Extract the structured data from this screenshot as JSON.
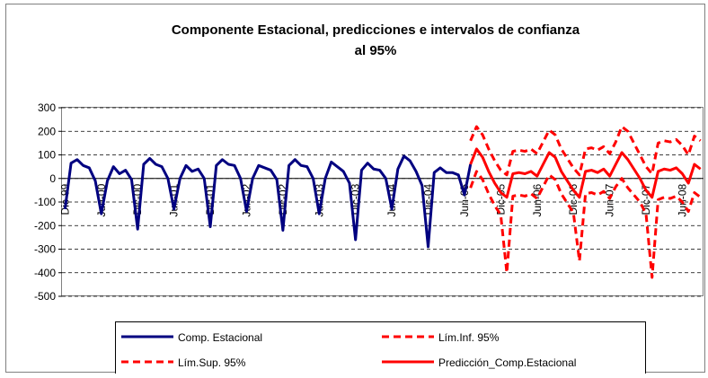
{
  "chart_data": {
    "type": "line",
    "title_lines": [
      "Componente Estacional, predicciones e intervalos de confianza",
      "al 95%"
    ],
    "categories": [
      "Dic-99",
      null,
      null,
      null,
      null,
      null,
      "Jun-00",
      null,
      null,
      null,
      null,
      null,
      "Dic-00",
      null,
      null,
      null,
      null,
      null,
      "Jun-01",
      null,
      null,
      null,
      null,
      null,
      "Dic-01",
      null,
      null,
      null,
      null,
      null,
      "Jun-02",
      null,
      null,
      null,
      null,
      null,
      "Dic-02",
      null,
      null,
      null,
      null,
      null,
      "Jun-03",
      null,
      null,
      null,
      null,
      null,
      "Dic-03",
      null,
      null,
      null,
      null,
      null,
      "Jun-04",
      null,
      null,
      null,
      null,
      null,
      "Dic-04",
      null,
      null,
      null,
      null,
      null,
      "Jun-05",
      null,
      null,
      null,
      null,
      null,
      "Dic-05",
      null,
      null,
      null,
      null,
      null,
      "Jun-06",
      null,
      null,
      null,
      null,
      null,
      "Dic-06",
      null,
      null,
      null,
      null,
      null,
      "Jun-07",
      null,
      null,
      null,
      null,
      null,
      "Dic-07",
      null,
      null,
      null,
      null,
      null,
      "Jun-08",
      null,
      null,
      null
    ],
    "series": [
      {
        "name": "Comp. Estacional",
        "color": "#000080",
        "dashed": false,
        "width": 3,
        "values": [
          -130,
          65,
          80,
          55,
          45,
          -10,
          -150,
          -10,
          50,
          20,
          35,
          -5,
          -215,
          60,
          85,
          60,
          50,
          0,
          -130,
          0,
          55,
          30,
          40,
          0,
          -205,
          55,
          80,
          60,
          55,
          0,
          -140,
          0,
          55,
          45,
          35,
          -5,
          -220,
          55,
          80,
          55,
          50,
          0,
          -150,
          0,
          70,
          50,
          30,
          -20,
          -260,
          35,
          65,
          40,
          35,
          0,
          -130,
          40,
          95,
          75,
          30,
          -30,
          -290,
          25,
          45,
          25,
          25,
          15,
          -70,
          60,
          null,
          null,
          null,
          null,
          null,
          null,
          null,
          null,
          null,
          null,
          null,
          null,
          null,
          null,
          null,
          null,
          null,
          null,
          null,
          null,
          null,
          null,
          null,
          null,
          null,
          null,
          null,
          null,
          null,
          null,
          null,
          null,
          null,
          null,
          null,
          null,
          null,
          null
        ]
      },
      {
        "name": "Lím.Inf. 95%",
        "color": "#ff0000",
        "dashed": true,
        "width": 3,
        "values": [
          null,
          null,
          null,
          null,
          null,
          null,
          null,
          null,
          null,
          null,
          null,
          null,
          null,
          null,
          null,
          null,
          null,
          null,
          null,
          null,
          null,
          null,
          null,
          null,
          null,
          null,
          null,
          null,
          null,
          null,
          null,
          null,
          null,
          null,
          null,
          null,
          null,
          null,
          null,
          null,
          null,
          null,
          null,
          null,
          null,
          null,
          null,
          null,
          null,
          null,
          null,
          null,
          null,
          null,
          null,
          null,
          null,
          null,
          null,
          null,
          null,
          null,
          null,
          null,
          null,
          null,
          null,
          -40,
          30,
          -5,
          -65,
          -115,
          -155,
          -400,
          -75,
          -70,
          -75,
          -65,
          -85,
          -35,
          15,
          -5,
          -65,
          -105,
          -145,
          -350,
          -65,
          -60,
          -70,
          -55,
          -85,
          -35,
          0,
          -40,
          -70,
          -100,
          -150,
          -420,
          -90,
          -80,
          -85,
          -75,
          -100,
          -140,
          -60,
          -80
        ]
      },
      {
        "name": "Lím.Sup. 95%",
        "color": "#ff0000",
        "dashed": true,
        "width": 3,
        "values": [
          null,
          null,
          null,
          null,
          null,
          null,
          null,
          null,
          null,
          null,
          null,
          null,
          null,
          null,
          null,
          null,
          null,
          null,
          null,
          null,
          null,
          null,
          null,
          null,
          null,
          null,
          null,
          null,
          null,
          null,
          null,
          null,
          null,
          null,
          null,
          null,
          null,
          null,
          null,
          null,
          null,
          null,
          null,
          null,
          null,
          null,
          null,
          null,
          null,
          null,
          null,
          null,
          null,
          null,
          null,
          null,
          null,
          null,
          null,
          null,
          null,
          null,
          null,
          null,
          null,
          null,
          null,
          160,
          220,
          185,
          125,
          75,
          35,
          15,
          115,
          120,
          115,
          125,
          105,
          155,
          205,
          185,
          125,
          85,
          45,
          15,
          125,
          130,
          120,
          135,
          105,
          155,
          220,
          200,
          150,
          100,
          50,
          20,
          150,
          160,
          155,
          165,
          140,
          100,
          180,
          160
        ]
      },
      {
        "name": "Predicción_Comp.Estacional",
        "color": "#ff0000",
        "dashed": false,
        "width": 3,
        "values": [
          null,
          null,
          null,
          null,
          null,
          null,
          null,
          null,
          null,
          null,
          null,
          null,
          null,
          null,
          null,
          null,
          null,
          null,
          null,
          null,
          null,
          null,
          null,
          null,
          null,
          null,
          null,
          null,
          null,
          null,
          null,
          null,
          null,
          null,
          null,
          null,
          null,
          null,
          null,
          null,
          null,
          null,
          null,
          null,
          null,
          null,
          null,
          null,
          null,
          null,
          null,
          null,
          null,
          null,
          null,
          null,
          null,
          null,
          null,
          null,
          null,
          null,
          null,
          null,
          null,
          null,
          null,
          60,
          125,
          90,
          30,
          -20,
          -60,
          -80,
          20,
          25,
          20,
          30,
          10,
          60,
          110,
          90,
          30,
          -10,
          -50,
          -80,
          30,
          35,
          25,
          40,
          10,
          60,
          110,
          80,
          40,
          0,
          -50,
          -80,
          30,
          40,
          35,
          45,
          20,
          -20,
          60,
          40
        ]
      }
    ],
    "ylim": [
      -500,
      300
    ],
    "yticks": [
      -500,
      -400,
      -300,
      -200,
      -100,
      0,
      100,
      200,
      300
    ],
    "grid": true
  }
}
